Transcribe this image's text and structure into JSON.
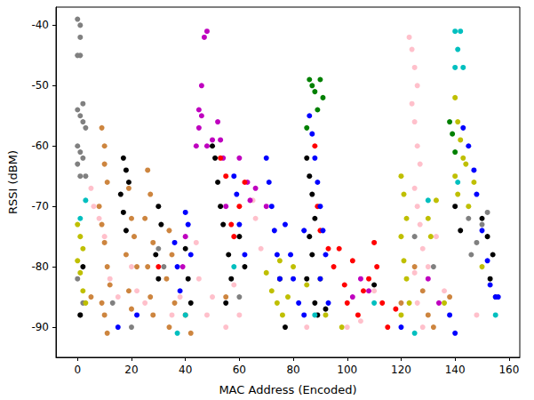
{
  "chart_data": {
    "type": "scatter",
    "x_label": "MAC Address (Encoded)",
    "y_label": "RSSI (dBM)",
    "xlim": [
      -8,
      164
    ],
    "xticks": [
      0,
      20,
      40,
      60,
      80,
      100,
      120,
      140,
      160
    ],
    "ylim": [
      -95,
      -37
    ],
    "yticks": [
      -90,
      -80,
      -70,
      -60,
      -50,
      -40
    ],
    "grid": false,
    "marker": "circle",
    "series": [
      {
        "color": "#808080",
        "values": [
          [
            0,
            -39
          ],
          [
            1,
            -40
          ],
          [
            1,
            -42
          ],
          [
            0,
            -45
          ],
          [
            1,
            -45
          ],
          [
            2,
            -53
          ],
          [
            0,
            -54
          ],
          [
            1,
            -55
          ],
          [
            2,
            -56
          ],
          [
            3,
            -57
          ],
          [
            0,
            -60
          ],
          [
            1,
            -61
          ],
          [
            2,
            -62
          ],
          [
            0,
            -63
          ],
          [
            3,
            -65
          ],
          [
            1,
            -65
          ],
          [
            0,
            -82
          ],
          [
            2,
            -86
          ],
          [
            1,
            -88
          ],
          [
            30,
            -77
          ],
          [
            32,
            -80
          ],
          [
            60,
            -85
          ],
          [
            145,
            -72
          ],
          [
            146,
            -78
          ],
          [
            148,
            -76
          ],
          [
            150,
            -73
          ],
          [
            152,
            -71
          ],
          [
            155,
            -85
          ],
          [
            125,
            -75
          ],
          [
            20,
            -90
          ],
          [
            13,
            -86
          ],
          [
            132,
            -80
          ]
        ]
      },
      {
        "color": "#cd853f",
        "values": [
          [
            9,
            -57
          ],
          [
            10,
            -60
          ],
          [
            10,
            -63
          ],
          [
            11,
            -66
          ],
          [
            8,
            -70
          ],
          [
            9,
            -73
          ],
          [
            10,
            -76
          ],
          [
            11,
            -80
          ],
          [
            12,
            -83
          ],
          [
            9,
            -86
          ],
          [
            10,
            -88
          ],
          [
            11,
            -91
          ],
          [
            19,
            -67
          ],
          [
            20,
            -72
          ],
          [
            21,
            -75
          ],
          [
            18,
            -78
          ],
          [
            22,
            -80
          ],
          [
            19,
            -84
          ],
          [
            20,
            -87
          ],
          [
            26,
            -64
          ],
          [
            27,
            -68
          ],
          [
            25,
            -72
          ],
          [
            28,
            -76
          ],
          [
            26,
            -80
          ],
          [
            27,
            -85
          ],
          [
            28,
            -88
          ],
          [
            34,
            -74
          ],
          [
            35,
            -78
          ],
          [
            33,
            -82
          ],
          [
            36,
            -86
          ],
          [
            34,
            -90
          ],
          [
            40,
            -88
          ],
          [
            42,
            -91
          ],
          [
            55,
            -85
          ],
          [
            125,
            -80
          ],
          [
            128,
            -84
          ],
          [
            130,
            -88
          ],
          [
            132,
            -90
          ],
          [
            120,
            -86
          ],
          [
            138,
            -85
          ],
          [
            5,
            -85
          ]
        ]
      },
      {
        "color": "#000000",
        "values": [
          [
            17,
            -62
          ],
          [
            18,
            -64
          ],
          [
            19,
            -66
          ],
          [
            16,
            -68
          ],
          [
            17,
            -71
          ],
          [
            18,
            -74
          ],
          [
            30,
            -70
          ],
          [
            31,
            -73
          ],
          [
            29,
            -78
          ],
          [
            30,
            -82
          ],
          [
            40,
            -77
          ],
          [
            41,
            -82
          ],
          [
            42,
            -86
          ],
          [
            50,
            -60
          ],
          [
            51,
            -62
          ],
          [
            52,
            -66
          ],
          [
            53,
            -70
          ],
          [
            54,
            -73
          ],
          [
            56,
            -78
          ],
          [
            57,
            -82
          ],
          [
            55,
            -86
          ],
          [
            60,
            -75
          ],
          [
            62,
            -80
          ],
          [
            85,
            -62
          ],
          [
            86,
            -65
          ],
          [
            87,
            -68
          ],
          [
            88,
            -72
          ],
          [
            86,
            -75
          ],
          [
            87,
            -78
          ],
          [
            85,
            -82
          ],
          [
            88,
            -86
          ],
          [
            89,
            -88
          ],
          [
            75,
            -82
          ],
          [
            77,
            -90
          ],
          [
            92,
            -87
          ],
          [
            110,
            -83
          ],
          [
            140,
            -70
          ],
          [
            142,
            -74
          ],
          [
            150,
            -72
          ],
          [
            152,
            -75
          ],
          [
            154,
            -78
          ],
          [
            153,
            -82
          ],
          [
            1,
            -88
          ],
          [
            2,
            -80
          ]
        ]
      },
      {
        "color": "#00bfbf",
        "values": [
          [
            3,
            -69
          ],
          [
            1,
            -72
          ],
          [
            88,
            -88
          ],
          [
            140,
            -41
          ],
          [
            142,
            -41
          ],
          [
            141,
            -44
          ],
          [
            140,
            -47
          ],
          [
            143,
            -47
          ],
          [
            141,
            -66
          ],
          [
            58,
            -80
          ],
          [
            110,
            -86
          ],
          [
            130,
            -69
          ],
          [
            40,
            -88
          ],
          [
            37,
            -91
          ],
          [
            125,
            -91
          ],
          [
            155,
            -88
          ]
        ]
      },
      {
        "color": "#bfbf00",
        "values": [
          [
            0,
            -73
          ],
          [
            1,
            -75
          ],
          [
            2,
            -77
          ],
          [
            0,
            -79
          ],
          [
            1,
            -81
          ],
          [
            2,
            -84
          ],
          [
            3,
            -86
          ],
          [
            72,
            -84
          ],
          [
            74,
            -86
          ],
          [
            76,
            -88
          ],
          [
            78,
            -85
          ],
          [
            80,
            -80
          ],
          [
            85,
            -83
          ],
          [
            90,
            -82
          ],
          [
            92,
            -88
          ],
          [
            98,
            -90
          ],
          [
            120,
            -65
          ],
          [
            121,
            -68
          ],
          [
            122,
            -72
          ],
          [
            120,
            -75
          ],
          [
            121,
            -79
          ],
          [
            122,
            -82
          ],
          [
            123,
            -86
          ],
          [
            120,
            -88
          ],
          [
            140,
            -52
          ],
          [
            141,
            -56
          ],
          [
            142,
            -59
          ],
          [
            143,
            -62
          ],
          [
            140,
            -65
          ],
          [
            141,
            -68
          ],
          [
            144,
            -63
          ],
          [
            145,
            -70
          ],
          [
            147,
            -66
          ],
          [
            150,
            -80
          ],
          [
            130,
            -72
          ],
          [
            131,
            -75
          ],
          [
            133,
            -69
          ],
          [
            136,
            -86
          ],
          [
            70,
            -81
          ],
          [
            75,
            -79
          ]
        ]
      },
      {
        "color": "#ffc0cb",
        "values": [
          [
            5,
            -67
          ],
          [
            6,
            -70
          ],
          [
            8,
            -72
          ],
          [
            10,
            -75
          ],
          [
            12,
            -82
          ],
          [
            15,
            -85
          ],
          [
            20,
            -80
          ],
          [
            22,
            -84
          ],
          [
            25,
            -86
          ],
          [
            35,
            -88
          ],
          [
            38,
            -85
          ],
          [
            44,
            -76
          ],
          [
            45,
            -82
          ],
          [
            48,
            -88
          ],
          [
            50,
            -85
          ],
          [
            55,
            -90
          ],
          [
            58,
            -83
          ],
          [
            65,
            -69
          ],
          [
            66,
            -72
          ],
          [
            68,
            -77
          ],
          [
            100,
            -90
          ],
          [
            105,
            -89
          ],
          [
            110,
            -84
          ],
          [
            123,
            -42
          ],
          [
            124,
            -44
          ],
          [
            125,
            -47
          ],
          [
            126,
            -50
          ],
          [
            124,
            -53
          ],
          [
            125,
            -56
          ],
          [
            126,
            -60
          ],
          [
            127,
            -63
          ],
          [
            125,
            -67
          ],
          [
            126,
            -70
          ],
          [
            127,
            -73
          ],
          [
            128,
            -77
          ],
          [
            125,
            -81
          ],
          [
            126,
            -86
          ],
          [
            128,
            -90
          ],
          [
            130,
            -80
          ],
          [
            133,
            -75
          ],
          [
            136,
            -84
          ],
          [
            148,
            -88
          ],
          [
            85,
            -90
          ],
          [
            60,
            -88
          ]
        ]
      },
      {
        "color": "#bf00bf",
        "values": [
          [
            44,
            -60
          ],
          [
            45,
            -57
          ],
          [
            46,
            -55
          ],
          [
            47,
            -42
          ],
          [
            48,
            -41
          ],
          [
            46,
            -50
          ],
          [
            45,
            -54
          ],
          [
            48,
            -60
          ],
          [
            50,
            -59
          ],
          [
            52,
            -56
          ],
          [
            53,
            -59
          ],
          [
            54,
            -62
          ],
          [
            60,
            -62
          ],
          [
            63,
            -66
          ],
          [
            64,
            -69
          ],
          [
            66,
            -67
          ],
          [
            70,
            -70
          ],
          [
            102,
            -85
          ],
          [
            105,
            -82
          ],
          [
            108,
            -84
          ],
          [
            130,
            -82
          ],
          [
            134,
            -86
          ],
          [
            55,
            -70
          ],
          [
            40,
            -75
          ],
          [
            39,
            -80
          ]
        ]
      },
      {
        "color": "#ff0000",
        "values": [
          [
            53,
            -62
          ],
          [
            55,
            -65
          ],
          [
            57,
            -73
          ],
          [
            58,
            -75
          ],
          [
            60,
            -70
          ],
          [
            62,
            -66
          ],
          [
            89,
            -70
          ],
          [
            90,
            -74
          ],
          [
            93,
            -77
          ],
          [
            95,
            -80
          ],
          [
            97,
            -77
          ],
          [
            99,
            -83
          ],
          [
            100,
            -86
          ],
          [
            102,
            -79
          ],
          [
            104,
            -88
          ],
          [
            106,
            -84
          ],
          [
            108,
            -82
          ],
          [
            110,
            -76
          ],
          [
            111,
            -80
          ],
          [
            113,
            -86
          ],
          [
            115,
            -90
          ],
          [
            118,
            -87
          ],
          [
            88,
            -60
          ],
          [
            30,
            -80
          ]
        ]
      },
      {
        "color": "#0000ff",
        "values": [
          [
            15,
            -90
          ],
          [
            36,
            -76
          ],
          [
            37,
            -80
          ],
          [
            38,
            -84
          ],
          [
            40,
            -71
          ],
          [
            41,
            -73
          ],
          [
            42,
            -78
          ],
          [
            58,
            -65
          ],
          [
            59,
            -68
          ],
          [
            60,
            -73
          ],
          [
            62,
            -78
          ],
          [
            70,
            -62
          ],
          [
            71,
            -66
          ],
          [
            72,
            -70
          ],
          [
            73,
            -74
          ],
          [
            74,
            -78
          ],
          [
            75,
            -82
          ],
          [
            77,
            -73
          ],
          [
            79,
            -78
          ],
          [
            80,
            -82
          ],
          [
            82,
            -86
          ],
          [
            84,
            -88
          ],
          [
            86,
            -55
          ],
          [
            87,
            -58
          ],
          [
            88,
            -62
          ],
          [
            89,
            -66
          ],
          [
            90,
            -70
          ],
          [
            91,
            -74
          ],
          [
            92,
            -78
          ],
          [
            90,
            -82
          ],
          [
            93,
            -86
          ],
          [
            84,
            -74
          ],
          [
            143,
            -57
          ],
          [
            145,
            -60
          ],
          [
            147,
            -64
          ],
          [
            148,
            -68
          ],
          [
            150,
            -74
          ],
          [
            152,
            -79
          ],
          [
            153,
            -83
          ],
          [
            155,
            -85
          ],
          [
            156,
            -85
          ],
          [
            138,
            -88
          ],
          [
            140,
            -91
          ],
          [
            120,
            -90
          ],
          [
            22,
            -88
          ]
        ]
      },
      {
        "color": "#008000",
        "values": [
          [
            86,
            -49
          ],
          [
            87,
            -50
          ],
          [
            88,
            -51
          ],
          [
            90,
            -49
          ],
          [
            91,
            -52
          ],
          [
            89,
            -54
          ],
          [
            85,
            -57
          ],
          [
            138,
            -56
          ],
          [
            139,
            -58
          ],
          [
            140,
            -61
          ]
        ]
      }
    ]
  }
}
